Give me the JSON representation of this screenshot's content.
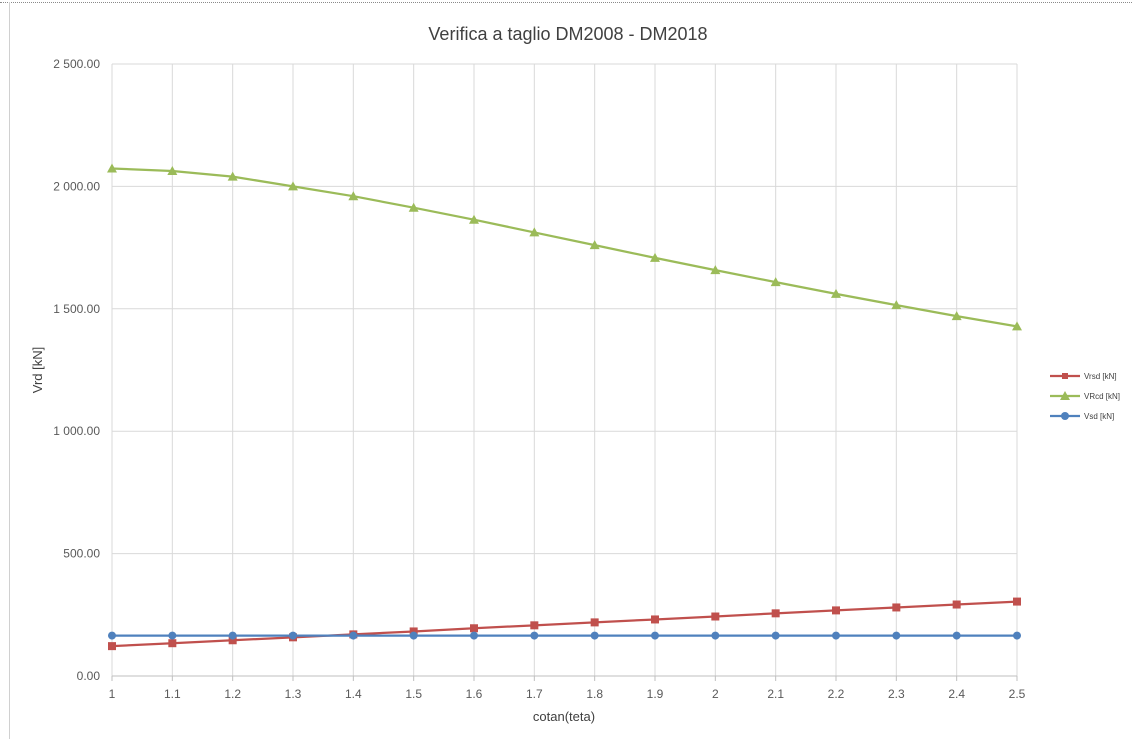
{
  "chart_data": {
    "type": "line",
    "title": "Verifica a taglio DM2008 - DM2018",
    "xlabel": "cotan(teta)",
    "ylabel": "Vrd [kN]",
    "x": [
      1,
      1.1,
      1.2,
      1.3,
      1.4,
      1.5,
      1.6,
      1.7,
      1.8,
      1.9,
      2,
      2.1,
      2.2,
      2.3,
      2.4,
      2.5
    ],
    "x_tick_labels": [
      "1",
      "1.1",
      "1.2",
      "1.3",
      "1.4",
      "1.5",
      "1.6",
      "1.7",
      "1.8",
      "1.9",
      "2",
      "2.1",
      "2.2",
      "2.3",
      "2.4",
      "2.5"
    ],
    "ylim": [
      0,
      2500
    ],
    "y_ticks": [
      0,
      500,
      1000,
      1500,
      2000,
      2500
    ],
    "y_tick_labels": [
      "0.00",
      "500.00",
      "1 000.00",
      "1 500.00",
      "2 000.00",
      "2 500.00"
    ],
    "grid": true,
    "legend_position": "right",
    "series": [
      {
        "name": "Vrsd [kN]",
        "color": "#c0504d",
        "marker": "square",
        "values": [
          122,
          134,
          146,
          158,
          170,
          182,
          195,
          207,
          219,
          231,
          243,
          256,
          268,
          280,
          292,
          304
        ]
      },
      {
        "name": "VRcd [kN]",
        "color": "#9bbb59",
        "marker": "triangle",
        "values": [
          2073,
          2063,
          2040,
          2000,
          1960,
          1913,
          1864,
          1812,
          1760,
          1708,
          1658,
          1609,
          1561,
          1515,
          1470,
          1428
        ]
      },
      {
        "name": "Vsd [kN]",
        "color": "#4f81bd",
        "marker": "circle",
        "values": [
          165,
          165,
          165,
          165,
          165,
          165,
          165,
          165,
          165,
          165,
          165,
          165,
          165,
          165,
          165,
          165
        ]
      }
    ]
  }
}
